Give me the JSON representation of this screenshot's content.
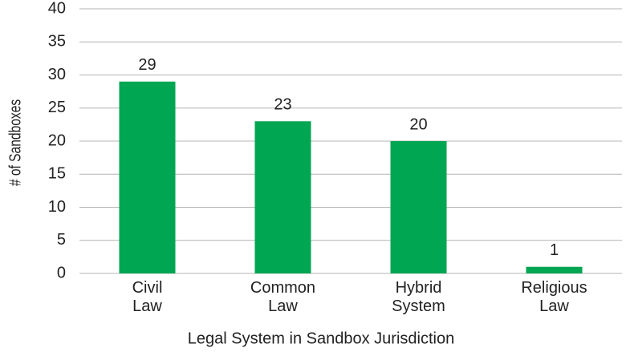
{
  "chart_data": {
    "type": "bar",
    "categories": [
      "Civil Law",
      "Common Law",
      "Hybrid System",
      "Religious Law"
    ],
    "values": [
      29,
      23,
      20,
      1
    ],
    "color": "#00a651",
    "x_label": "Legal System in Sandbox Jurisdiction",
    "y_label": "# of Sandboxes",
    "ylim": [
      0,
      40
    ],
    "yticks": [
      0,
      5,
      10,
      15,
      20,
      25,
      30,
      35,
      40
    ],
    "grid": true
  }
}
